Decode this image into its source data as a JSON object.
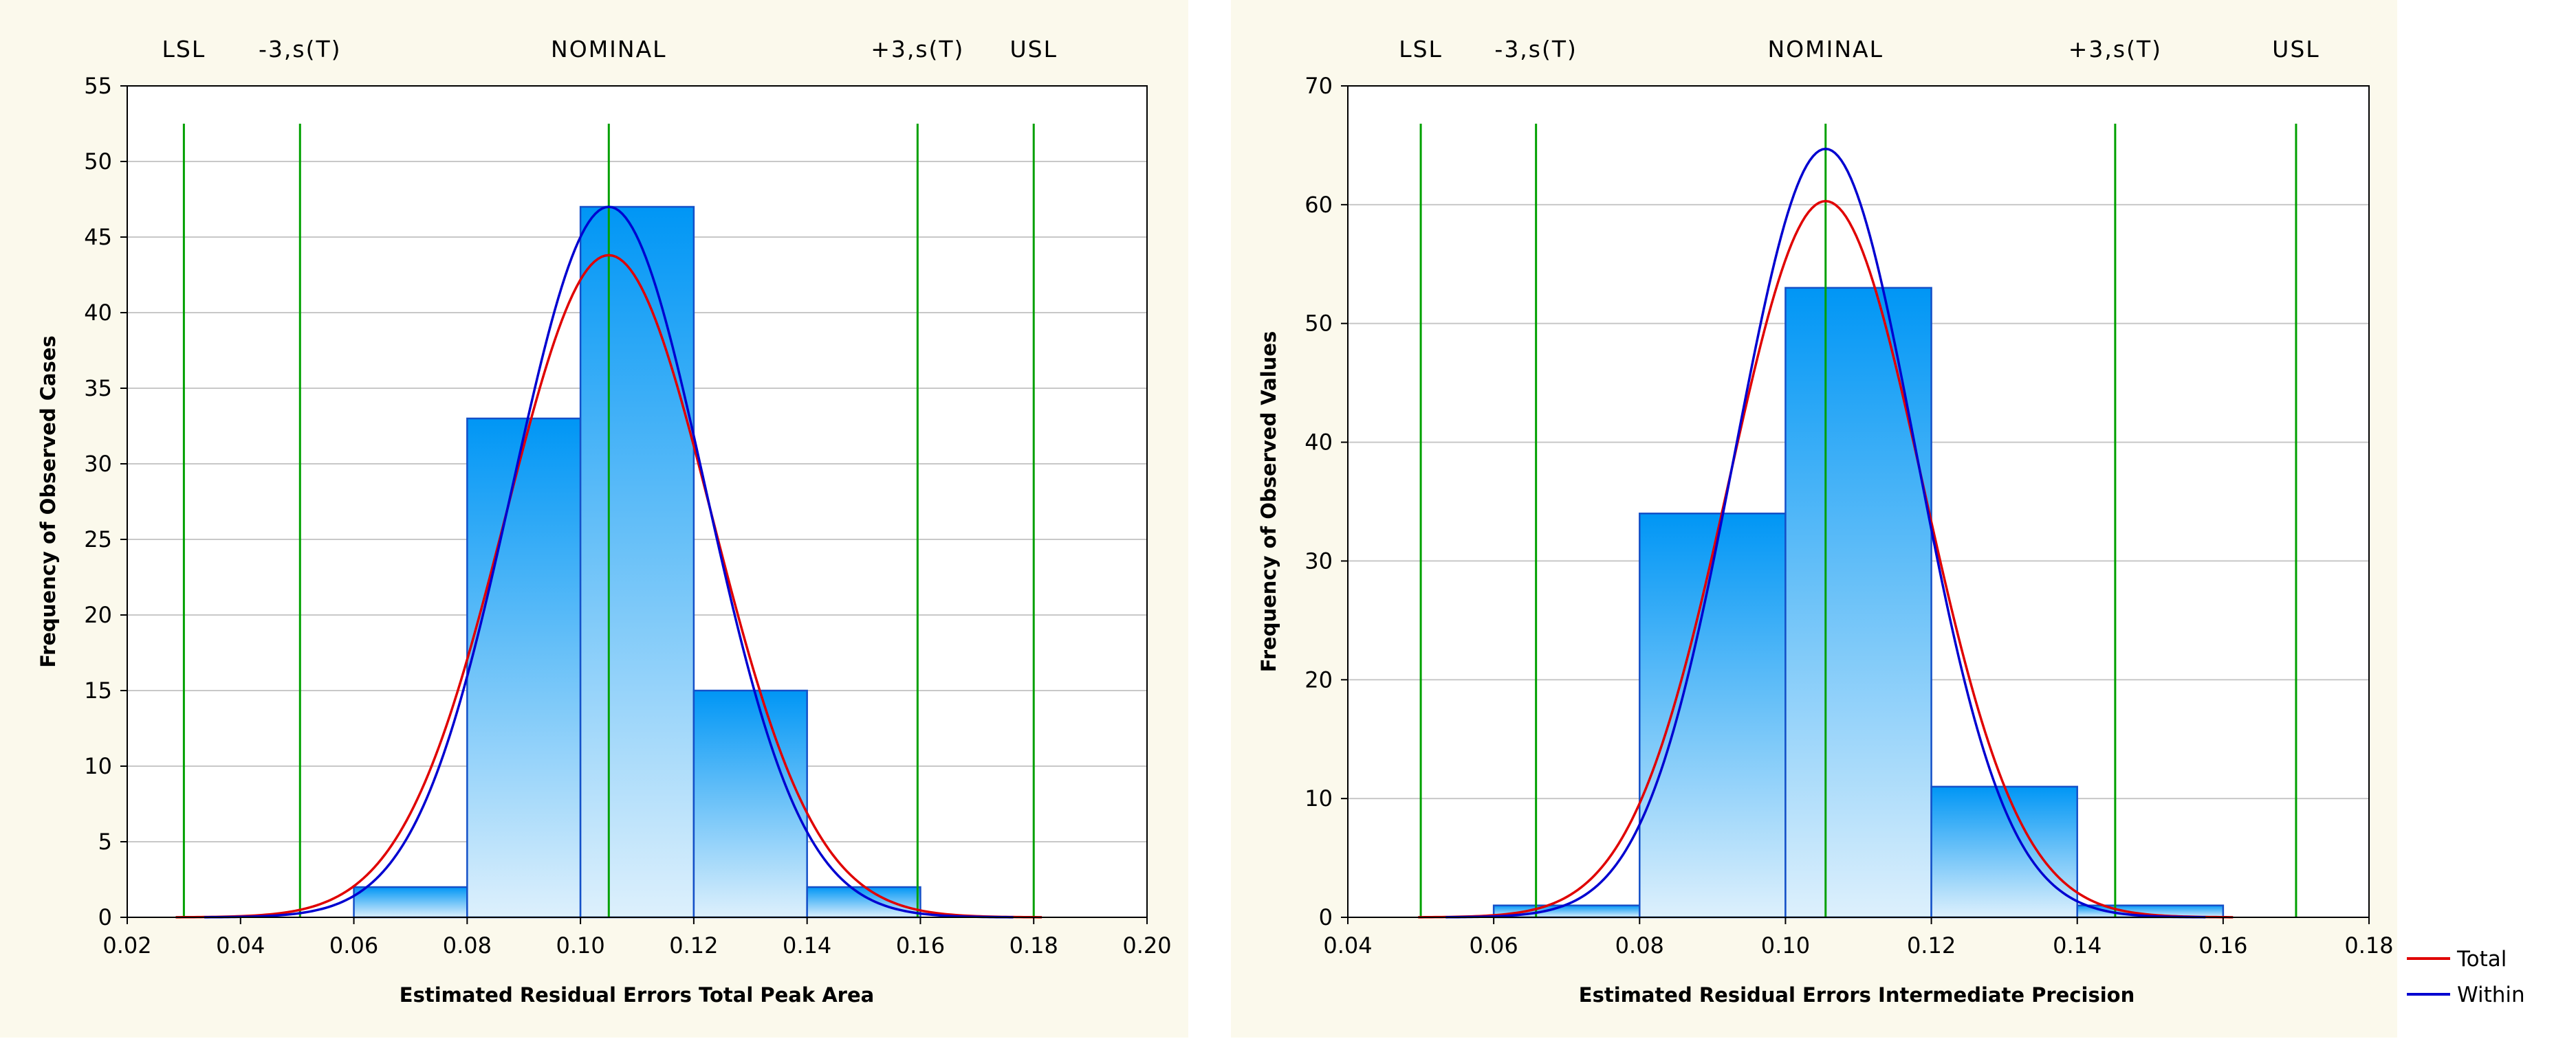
{
  "colors": {
    "background": "#FBF9EC",
    "plot_bg": "#FFFFFF",
    "bar_top": "#0096F5",
    "bar_bottom": "#DDF0FC",
    "bar_edge": "#1450C8",
    "spec_line": "#00A000",
    "total_curve": "#E00000",
    "within_curve": "#0000D0",
    "grid": "#C8C8C8"
  },
  "legend": {
    "items": [
      {
        "label": "Total",
        "color": "#E00000"
      },
      {
        "label": "Within",
        "color": "#0000D0"
      }
    ]
  },
  "chart_data": [
    {
      "type": "bar",
      "subtype": "histogram-with-normal-fit",
      "title": "",
      "xlabel": "Estimated Residual Errors Total Peak Area",
      "ylabel": "Frequency of Observed Cases",
      "xlim": [
        0.02,
        0.2
      ],
      "ylim": [
        0,
        55
      ],
      "xticks": [
        0.02,
        0.04,
        0.06,
        0.08,
        0.1,
        0.12,
        0.14,
        0.16,
        0.18,
        0.2
      ],
      "xtick_labels": [
        "0.02",
        "0.04",
        "0.06",
        "0.08",
        "0.10",
        "0.12",
        "0.14",
        "0.16",
        "0.18",
        "0.20"
      ],
      "yticks": [
        0,
        5,
        10,
        15,
        20,
        25,
        30,
        35,
        40,
        45,
        50,
        55
      ],
      "ytick_labels": [
        "0",
        "5",
        "10",
        "15",
        "20",
        "25",
        "30",
        "35",
        "40",
        "45",
        "50",
        "55"
      ],
      "grid": true,
      "bins": [
        {
          "from": 0.06,
          "to": 0.08,
          "value": 2
        },
        {
          "from": 0.08,
          "to": 0.1,
          "value": 33
        },
        {
          "from": 0.1,
          "to": 0.12,
          "value": 47
        },
        {
          "from": 0.12,
          "to": 0.14,
          "value": 15
        },
        {
          "from": 0.14,
          "to": 0.16,
          "value": 2
        }
      ],
      "spec_lines": [
        {
          "label": "LSL",
          "x": 0.03
        },
        {
          "label": "-3,s(T)",
          "x": 0.0505
        },
        {
          "label": "NOMINAL",
          "x": 0.105
        },
        {
          "label": "+3,s(T)",
          "x": 0.1595
        },
        {
          "label": "USL",
          "x": 0.18
        }
      ],
      "series": [
        {
          "name": "Total",
          "kind": "normal-curve",
          "mean": 0.105,
          "peak": 43.8,
          "sigma": 0.0182
        },
        {
          "name": "Within",
          "kind": "normal-curve",
          "mean": 0.105,
          "peak": 47.0,
          "sigma": 0.017
        }
      ]
    },
    {
      "type": "bar",
      "subtype": "histogram-with-normal-fit",
      "title": "",
      "xlabel": "Estimated Residual Errors Intermediate Precision",
      "ylabel": "Frequency of Observed Values",
      "xlim": [
        0.04,
        0.18
      ],
      "ylim": [
        0,
        70
      ],
      "xticks": [
        0.04,
        0.06,
        0.08,
        0.1,
        0.12,
        0.14,
        0.16,
        0.18
      ],
      "xtick_labels": [
        "0.04",
        "0.06",
        "0.08",
        "0.10",
        "0.12",
        "0.14",
        "0.16",
        "0.18"
      ],
      "yticks": [
        0,
        10,
        20,
        30,
        40,
        50,
        60,
        70
      ],
      "ytick_labels": [
        "0",
        "10",
        "20",
        "30",
        "40",
        "50",
        "60",
        "70"
      ],
      "grid": true,
      "bins": [
        {
          "from": 0.06,
          "to": 0.08,
          "value": 1
        },
        {
          "from": 0.08,
          "to": 0.1,
          "value": 34
        },
        {
          "from": 0.1,
          "to": 0.12,
          "value": 53
        },
        {
          "from": 0.12,
          "to": 0.14,
          "value": 11
        },
        {
          "from": 0.14,
          "to": 0.16,
          "value": 1
        }
      ],
      "spec_lines": [
        {
          "label": "LSL",
          "x": 0.05
        },
        {
          "label": "-3,s(T)",
          "x": 0.0658
        },
        {
          "label": "NOMINAL",
          "x": 0.1055
        },
        {
          "label": "+3,s(T)",
          "x": 0.1452
        },
        {
          "label": "USL",
          "x": 0.17
        }
      ],
      "series": [
        {
          "name": "Total",
          "kind": "normal-curve",
          "mean": 0.1055,
          "peak": 60.3,
          "sigma": 0.0133
        },
        {
          "name": "Within",
          "kind": "normal-curve",
          "mean": 0.1055,
          "peak": 64.7,
          "sigma": 0.0124
        }
      ]
    }
  ]
}
